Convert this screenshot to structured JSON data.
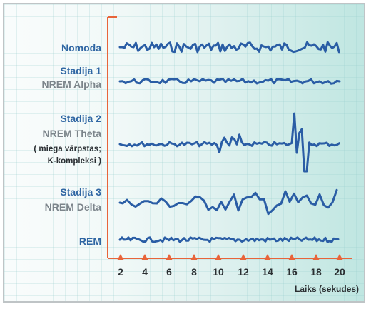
{
  "labels": {
    "nomoda": "Nomoda",
    "stadija1": "Stadija 1",
    "nrem_alpha": "NREM Alpha",
    "stadija2": "Stadija 2",
    "nrem_theta": "NREM Theta",
    "note_line1": "( miega vārpstas;",
    "note_line2": "K-kompleksi   )",
    "stadija3": "Stadija 3",
    "nrem_delta": "NREM Delta",
    "rem": "REM"
  },
  "x_axis": {
    "ticks": [
      "2",
      "4",
      "6",
      "8",
      "10",
      "12",
      "14",
      "16",
      "18",
      "20"
    ],
    "label": "Laiks (sekudes)"
  },
  "colors": {
    "wave": "#2a5da5",
    "axis": "#e8643a",
    "title_blue": "#2f66a3",
    "subtitle_gray": "#7c858b"
  }
}
